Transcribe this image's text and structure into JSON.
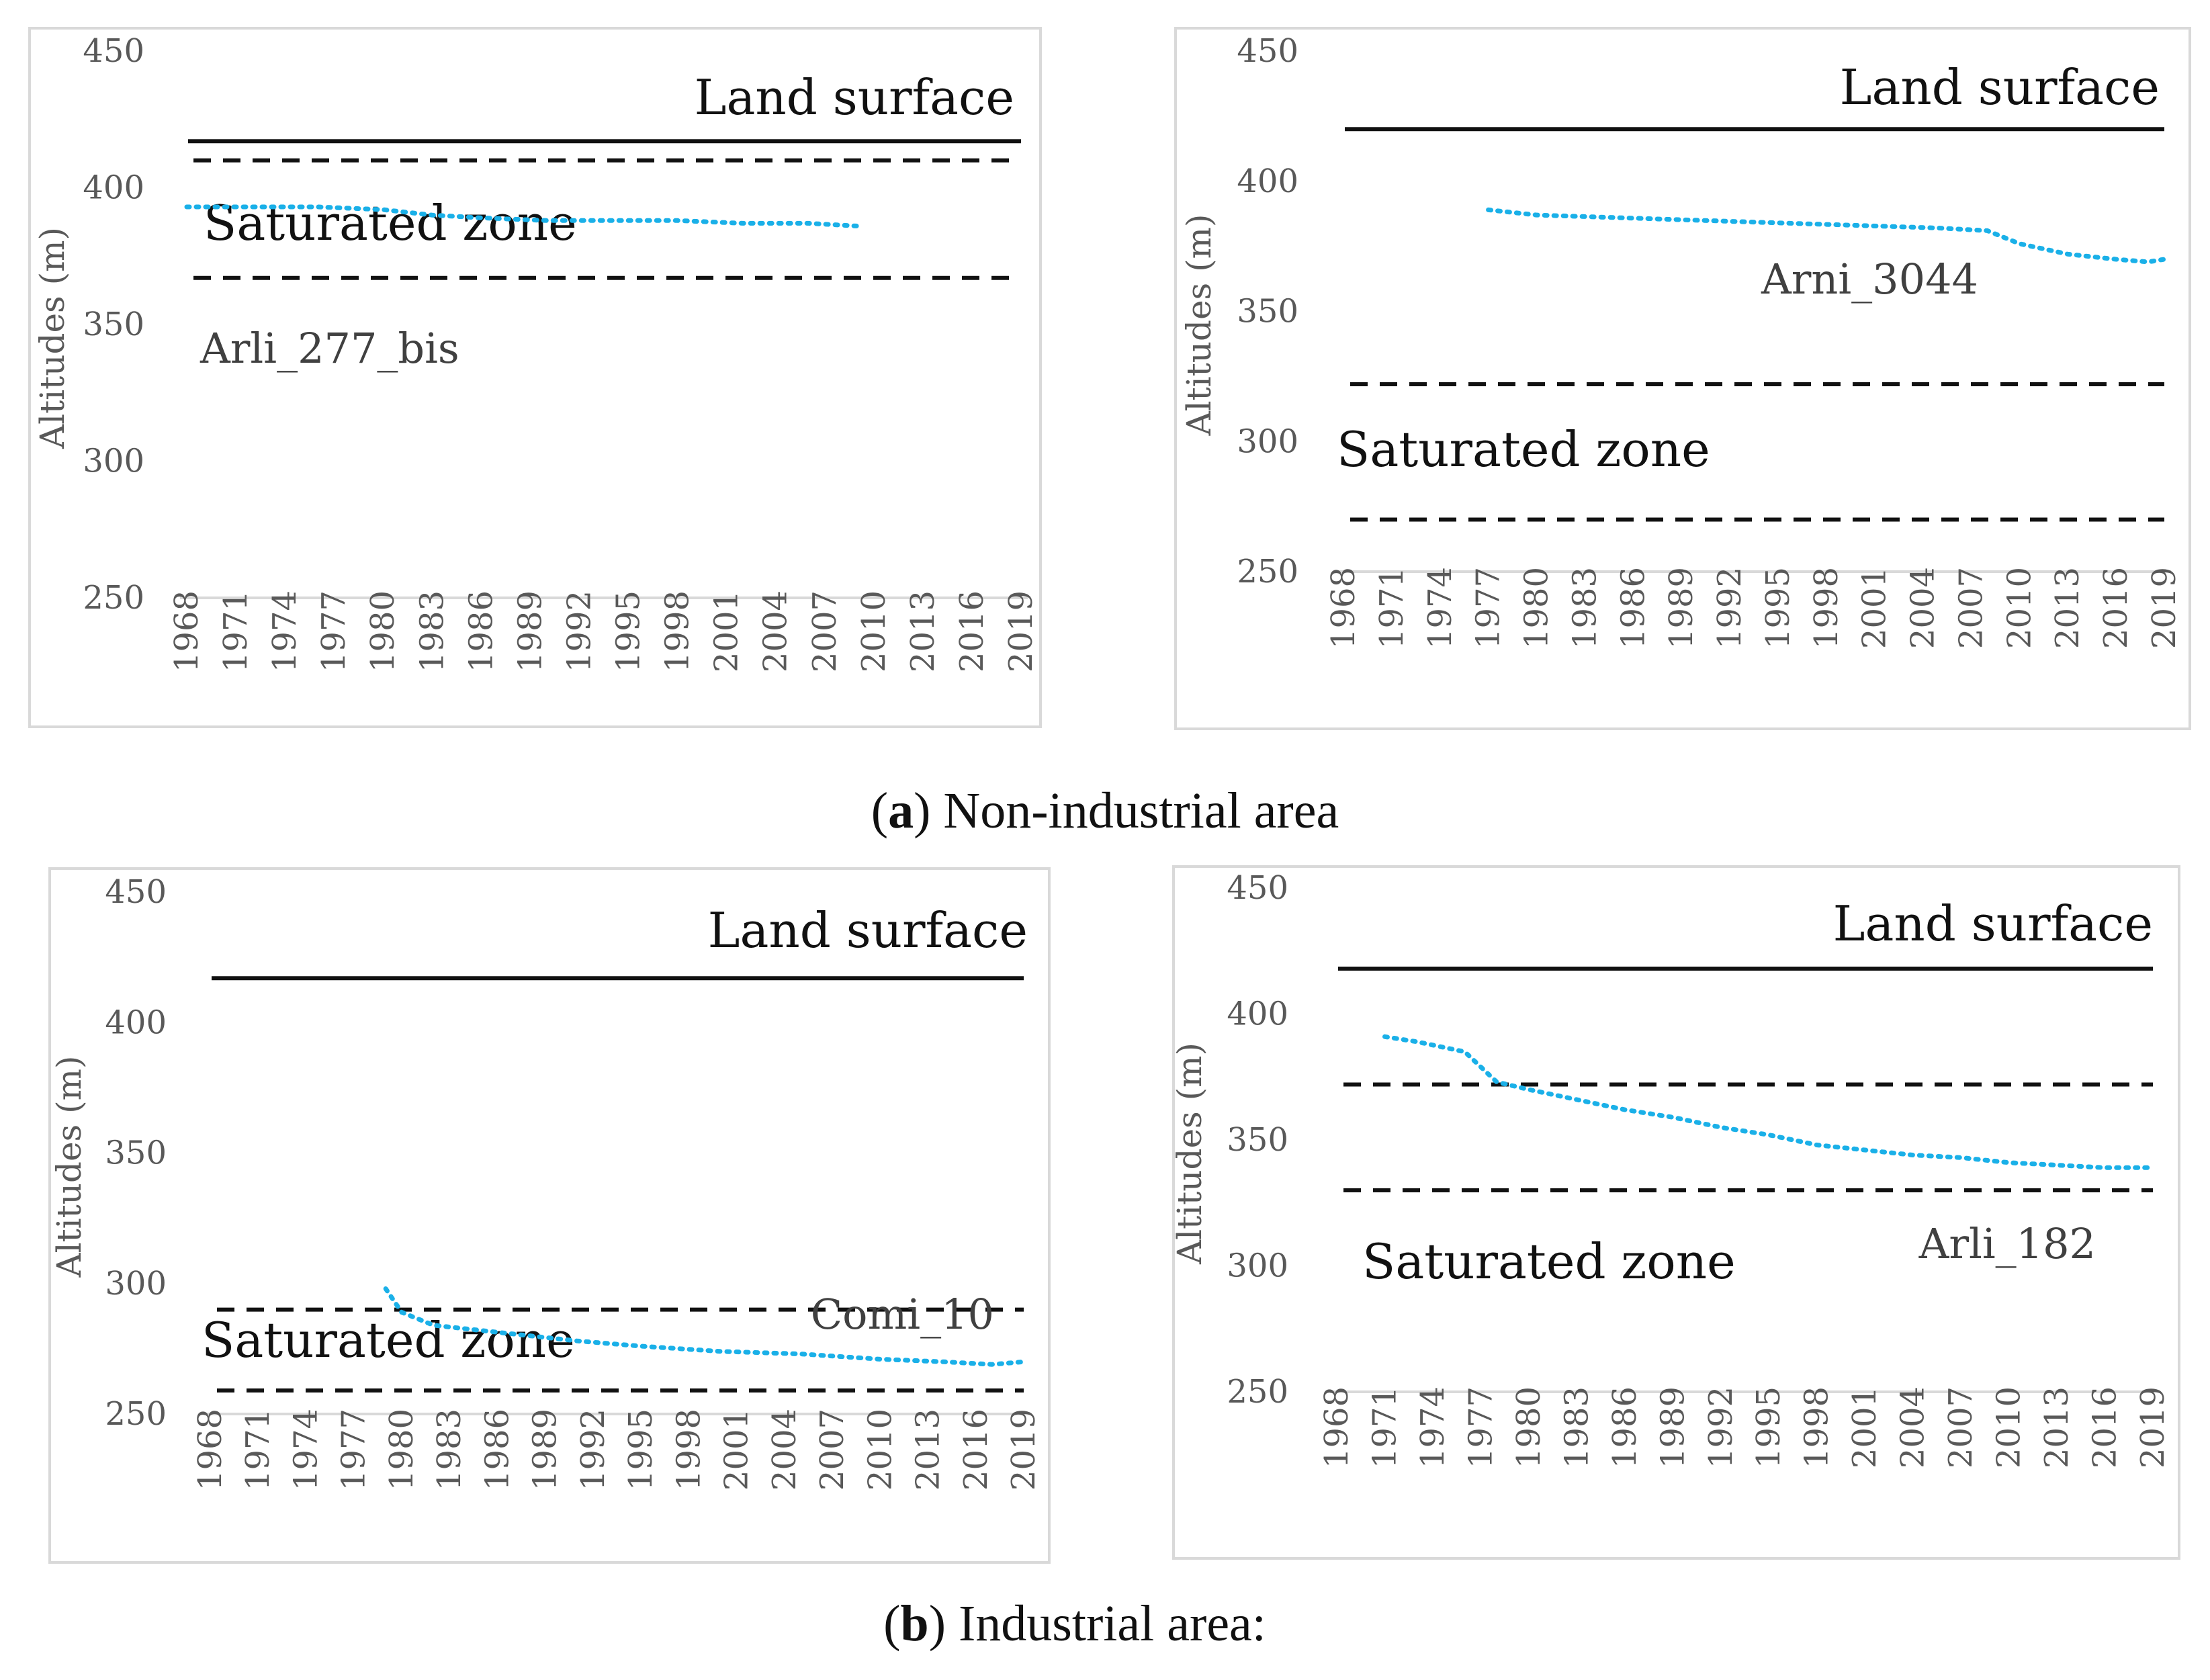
{
  "captions": {
    "a_letter": "a",
    "a_text": "Non-industrial area",
    "b_letter": "b",
    "b_text": "Industrial area:"
  },
  "colors": {
    "water_table": "#1ab0e8",
    "boundaries": "#111111",
    "axis_text": "#595959",
    "frame": "#d9d9d9"
  },
  "chart_data": [
    {
      "type": "line",
      "panel": "a-left",
      "well_label": "Arli_277_bis",
      "ylabel": "Altitudes (m)",
      "ylim": [
        250,
        450
      ],
      "yticks": [
        250,
        300,
        350,
        400,
        450
      ],
      "xlim": [
        1968,
        2019
      ],
      "xticks": [
        "1968",
        "1971",
        "1974",
        "1977",
        "1980",
        "1983",
        "1986",
        "1989",
        "1992",
        "1995",
        "1998",
        "2001",
        "2004",
        "2007",
        "2010",
        "2013",
        "2016",
        "2019"
      ],
      "land_surface": {
        "label": "Land surface",
        "y": 417
      },
      "saturated_zone": {
        "label": "Saturated zone",
        "top": 410,
        "bottom": 367
      },
      "series": [
        {
          "name": "Arli_277_bis",
          "style": "dotted",
          "x": [
            1968,
            1972,
            1976,
            1980,
            1983,
            1986,
            1990,
            1994,
            1998,
            2002,
            2006,
            2009
          ],
          "y": [
            393,
            393,
            393,
            392,
            390,
            389,
            388,
            388,
            388,
            387,
            387,
            386
          ]
        }
      ]
    },
    {
      "type": "line",
      "panel": "a-right",
      "well_label": "Arni_3044",
      "ylabel": "Altitudes (m)",
      "ylim": [
        250,
        450
      ],
      "yticks": [
        250,
        300,
        350,
        400,
        450
      ],
      "xlim": [
        1968,
        2019
      ],
      "xticks": [
        "1968",
        "1971",
        "1974",
        "1977",
        "1980",
        "1983",
        "1986",
        "1989",
        "1992",
        "1995",
        "1998",
        "2001",
        "2004",
        "2007",
        "2010",
        "2013",
        "2016",
        "2019"
      ],
      "land_surface": {
        "label": "Land surface",
        "y": 420
      },
      "saturated_zone": {
        "label": "Saturated zone",
        "top": 322,
        "bottom": 270
      },
      "series": [
        {
          "name": "Arni_3044",
          "style": "dotted",
          "x": [
            1977,
            1980,
            1985,
            1990,
            1995,
            2000,
            2005,
            2008,
            2010,
            2013,
            2016,
            2018,
            2019
          ],
          "y": [
            389,
            387,
            386,
            385,
            384,
            383,
            382,
            381,
            376,
            372,
            370,
            369,
            370
          ]
        }
      ]
    },
    {
      "type": "line",
      "panel": "b-left",
      "well_label": "Comi_10",
      "ylabel": "Altitudes (m)",
      "ylim": [
        250,
        450
      ],
      "yticks": [
        250,
        300,
        350,
        400,
        450
      ],
      "xlim": [
        1968,
        2019
      ],
      "xticks": [
        "1968",
        "1971",
        "1974",
        "1977",
        "1980",
        "1983",
        "1986",
        "1989",
        "1992",
        "1995",
        "1998",
        "2001",
        "2004",
        "2007",
        "2010",
        "2013",
        "2016",
        "2019"
      ],
      "land_surface": {
        "label": "Land surface",
        "y": 417
      },
      "saturated_zone": {
        "label": "Saturated zone",
        "top": 290,
        "bottom": 259
      },
      "series": [
        {
          "name": "Comi_10",
          "style": "dotted",
          "x": [
            1979,
            1980,
            1982,
            1985,
            1988,
            1991,
            1995,
            2000,
            2005,
            2010,
            2014,
            2017,
            2019
          ],
          "y": [
            298,
            289,
            284,
            282,
            280,
            278,
            276,
            274,
            273,
            271,
            270,
            269,
            270
          ]
        }
      ]
    },
    {
      "type": "line",
      "panel": "b-right",
      "well_label": "Arli_182",
      "ylabel": "Altitudes (m)",
      "ylim": [
        250,
        450
      ],
      "yticks": [
        250,
        300,
        350,
        400,
        450
      ],
      "xlim": [
        1968,
        2019
      ],
      "xticks": [
        "1968",
        "1971",
        "1974",
        "1977",
        "1980",
        "1983",
        "1986",
        "1989",
        "1992",
        "1995",
        "1998",
        "2001",
        "2004",
        "2007",
        "2010",
        "2013",
        "2016",
        "2019"
      ],
      "land_surface": {
        "label": "Land surface",
        "y": 418
      },
      "saturated_zone": {
        "label": "Saturated zone",
        "top": 372,
        "bottom": 330
      },
      "series": [
        {
          "name": "Arli_182",
          "style": "dotted",
          "x": [
            1971,
            1973,
            1976,
            1977,
            1978,
            1980,
            1983,
            1986,
            1989,
            1992,
            1995,
            1998,
            2001,
            2004,
            2007,
            2010,
            2013,
            2016,
            2019
          ],
          "y": [
            391,
            389,
            385,
            379,
            373,
            370,
            366,
            362,
            359,
            355,
            352,
            348,
            346,
            344,
            343,
            341,
            340,
            339,
            339
          ]
        }
      ]
    }
  ]
}
